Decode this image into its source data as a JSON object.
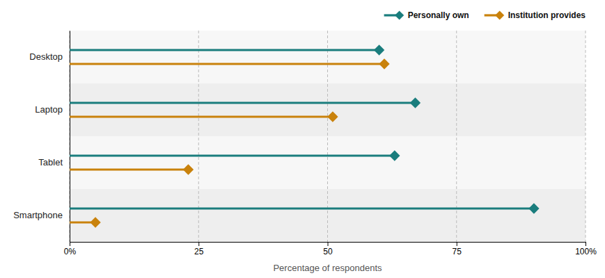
{
  "chart_data": {
    "type": "lollipop",
    "orientation": "horizontal",
    "categories": [
      "Desktop",
      "Laptop",
      "Tablet",
      "Smartphone"
    ],
    "series": [
      {
        "name": "Personally own",
        "color": "#1a7d7d",
        "marker": "diamond",
        "values": [
          60,
          67,
          63,
          90
        ]
      },
      {
        "name": "Institution provides",
        "color": "#c9820c",
        "marker": "diamond",
        "values": [
          61,
          51,
          23,
          5
        ]
      }
    ],
    "xlabel": "Percentage of respondents",
    "xlim": [
      0,
      100
    ],
    "xticks": [
      {
        "value": 0,
        "label": "0%"
      },
      25,
      50,
      75,
      {
        "value": 100,
        "label": "100%"
      }
    ],
    "grid": true,
    "legend": "upper right"
  }
}
